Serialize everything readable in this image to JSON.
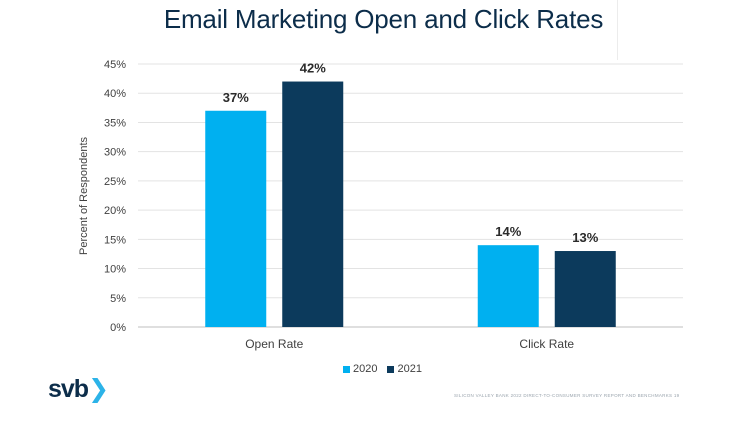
{
  "chart_data": {
    "type": "bar",
    "title": "Email Marketing Open and Click Rates",
    "ylabel": "Percent of Respondents",
    "xlabel": "",
    "categories": [
      "Open Rate",
      "Click Rate"
    ],
    "series": [
      {
        "name": "2020",
        "values": [
          37,
          14
        ],
        "labels": [
          "37%",
          "14%"
        ],
        "color": "#00b0f0"
      },
      {
        "name": "2021",
        "values": [
          42,
          13
        ],
        "labels": [
          "42%",
          "13%"
        ],
        "color": "#0c3a5c"
      }
    ],
    "ylim": [
      0,
      45
    ],
    "yticks": [
      "0%",
      "5%",
      "10%",
      "15%",
      "20%",
      "25%",
      "30%",
      "35%",
      "40%",
      "45%"
    ],
    "grid": true,
    "legend": "bottom"
  },
  "branding": {
    "logo": "svb",
    "logo_mark": "❯",
    "footer": "SILICON VALLEY BANK 2022 DIRECT-TO-CONSUMER SURVEY REPORT AND BENCHMARKS   19"
  }
}
